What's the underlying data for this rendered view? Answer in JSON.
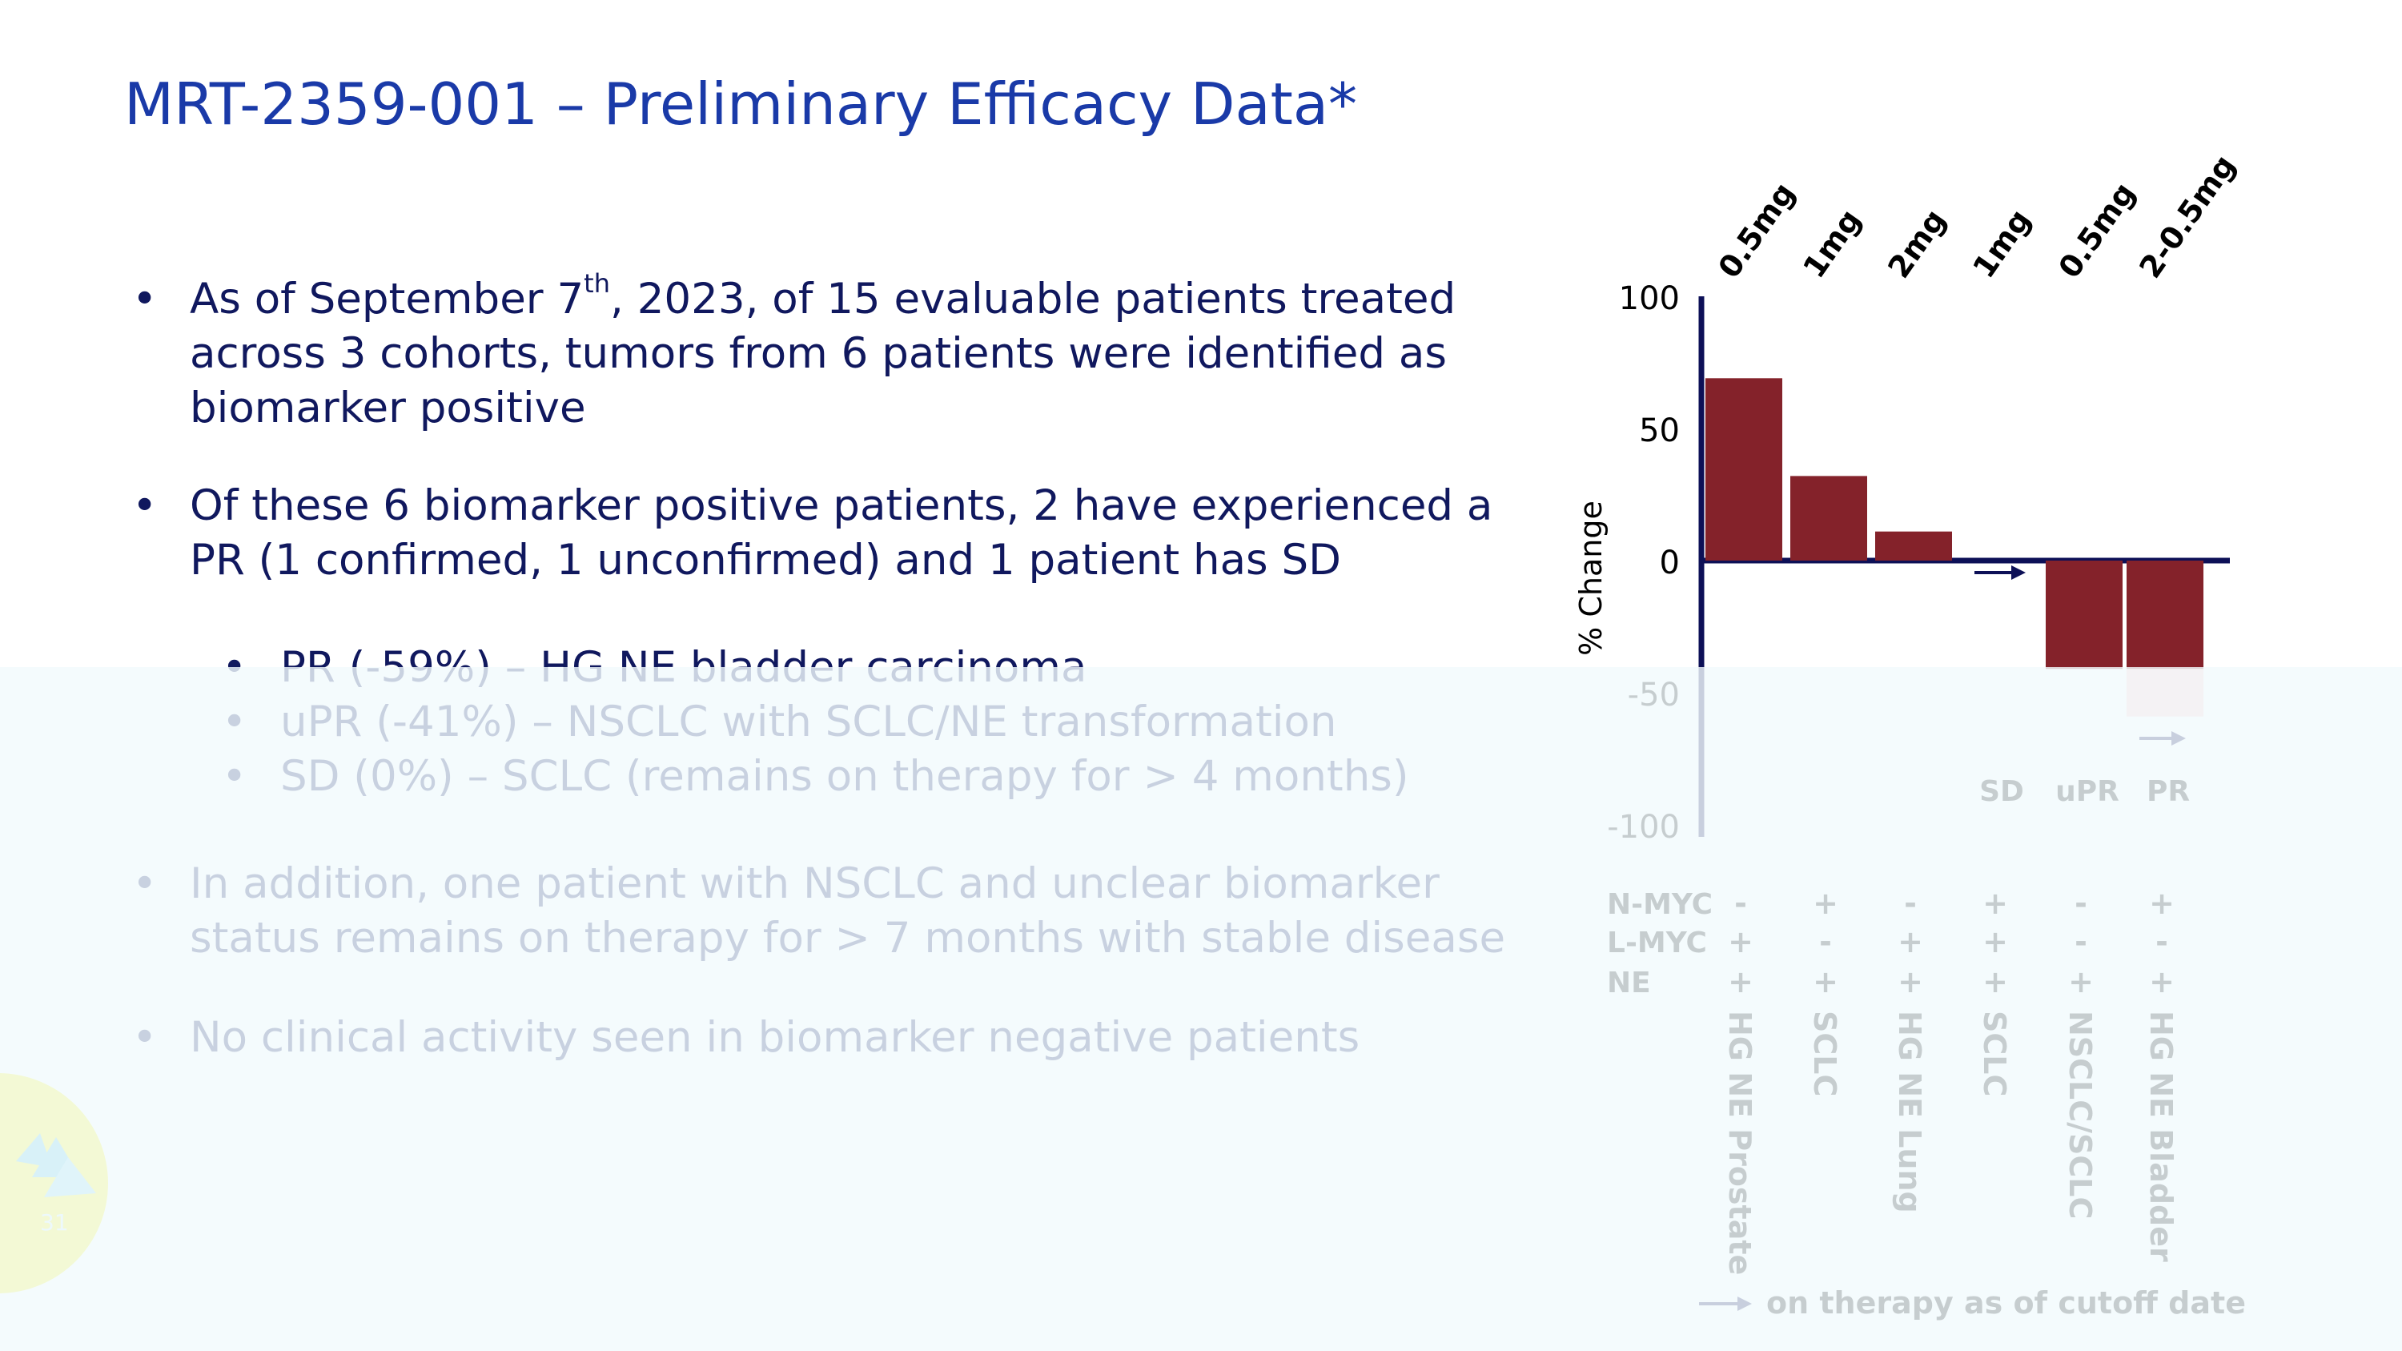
{
  "title": "MRT-2359-001 – Preliminary Efficacy Data*",
  "bullets": [
    {
      "pre": "As of September 7",
      "sup": "th",
      "post": ", 2023, of 15 evaluable patients treated"
    },
    {
      "text": "across 3 cohorts, tumors from 6 patients were identified as"
    },
    {
      "text": "biomarker positive"
    },
    {
      "text": "Of these 6 biomarker positive patients, 2 have experienced a"
    },
    {
      "text": "PR (1 confirmed, 1 unconfirmed) and 1 patient has SD"
    },
    {
      "text": "PR (-59%) – HG NE bladder carcinoma"
    },
    {
      "text": "uPR (-41%) – NSCLC with SCLC/NE transformation"
    },
    {
      "text": "SD (0%) – SCLC (remains on therapy for > 4 months)"
    },
    {
      "text": "In addition, one patient with NSCLC and unclear biomarker"
    },
    {
      "text": "status remains on therapy for > 7 months with stable disease"
    },
    {
      "text": "No clinical activity seen in biomarker negative patients"
    }
  ],
  "bullet_char": "•",
  "page_number": "31",
  "chart_data": {
    "type": "bar",
    "ylabel": "% Change",
    "ylim": [
      -100,
      100
    ],
    "yticks": [
      "100",
      "50",
      "0",
      "-50",
      "-100"
    ],
    "categories": [
      "HG NE Prostate",
      "SCLC",
      "HG NE Lung",
      "SCLC",
      "NSCLC/SCLC",
      "HG NE Bladder"
    ],
    "doses": [
      "0.5mg",
      "1mg",
      "2mg",
      "1mg",
      "0.5mg",
      "2-0.5mg"
    ],
    "values": [
      69,
      32,
      11,
      0,
      -41,
      -59
    ],
    "responses": [
      "",
      "",
      "",
      "SD",
      "uPR",
      "PR"
    ],
    "biomarkers": [
      {
        "label": "N-MYC",
        "values": [
          "-",
          "+",
          "-",
          "+",
          "-",
          "+"
        ]
      },
      {
        "label": "L-MYC",
        "values": [
          "+",
          "-",
          "+",
          "+",
          "-",
          "-"
        ]
      },
      {
        "label": "NE",
        "values": [
          "+",
          "+",
          "+",
          "+",
          "+",
          "+"
        ]
      }
    ],
    "on_therapy": [
      false,
      false,
      false,
      true,
      false,
      true
    ],
    "legend": "on therapy as of cutoff date",
    "colors": {
      "bar": "#84222a",
      "bar_light": "#ffcccc",
      "axis": "#0d1057",
      "arrow": "#0d1057"
    }
  }
}
